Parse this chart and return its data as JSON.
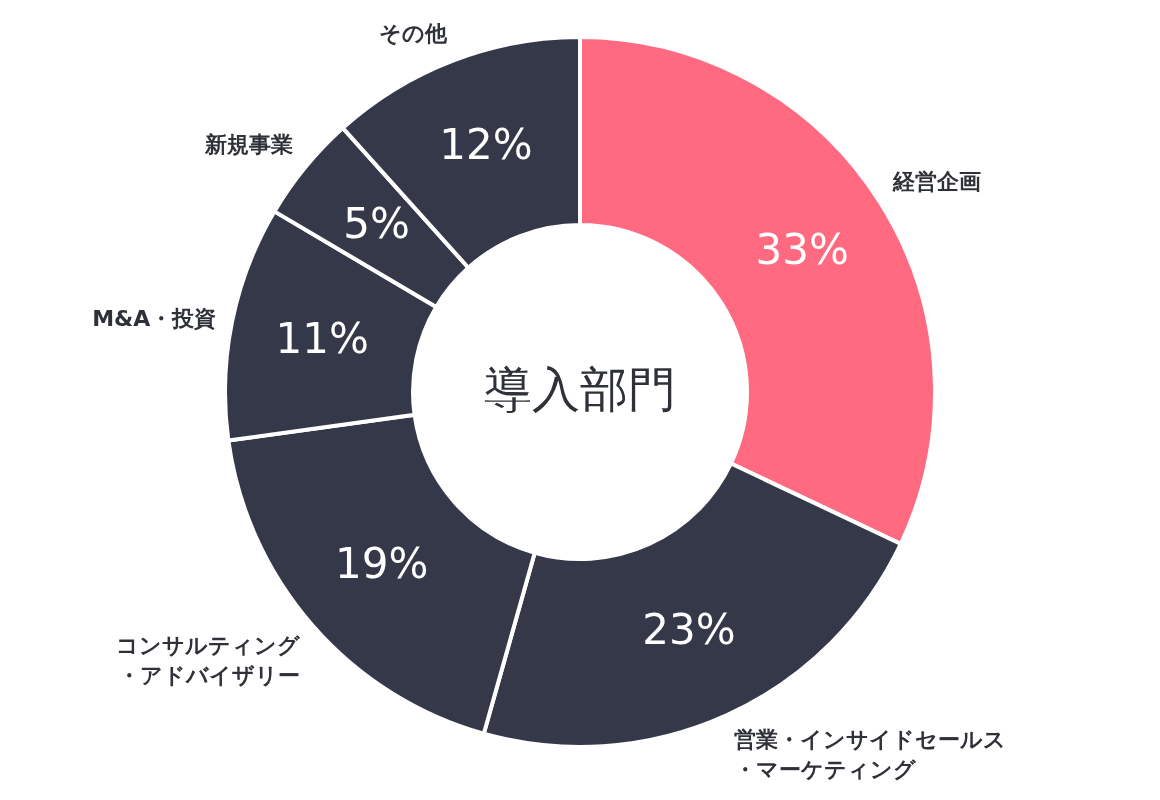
{
  "chart_data": {
    "type": "donut",
    "title": "導入部門",
    "categories": [
      "経営企画",
      "営業・インサイドセールス・マーケティング",
      "コンサルティング・アドバイザリー",
      "M&A・投資",
      "新規事業",
      "その他"
    ],
    "values": [
      33,
      23,
      19,
      11,
      5,
      12
    ],
    "colors": [
      "#ff6a80",
      "#353849",
      "#353849",
      "#353849",
      "#353849",
      "#353849"
    ],
    "value_labels": [
      "33%",
      "23%",
      "19%",
      "11%",
      "5%",
      "12%"
    ]
  }
}
